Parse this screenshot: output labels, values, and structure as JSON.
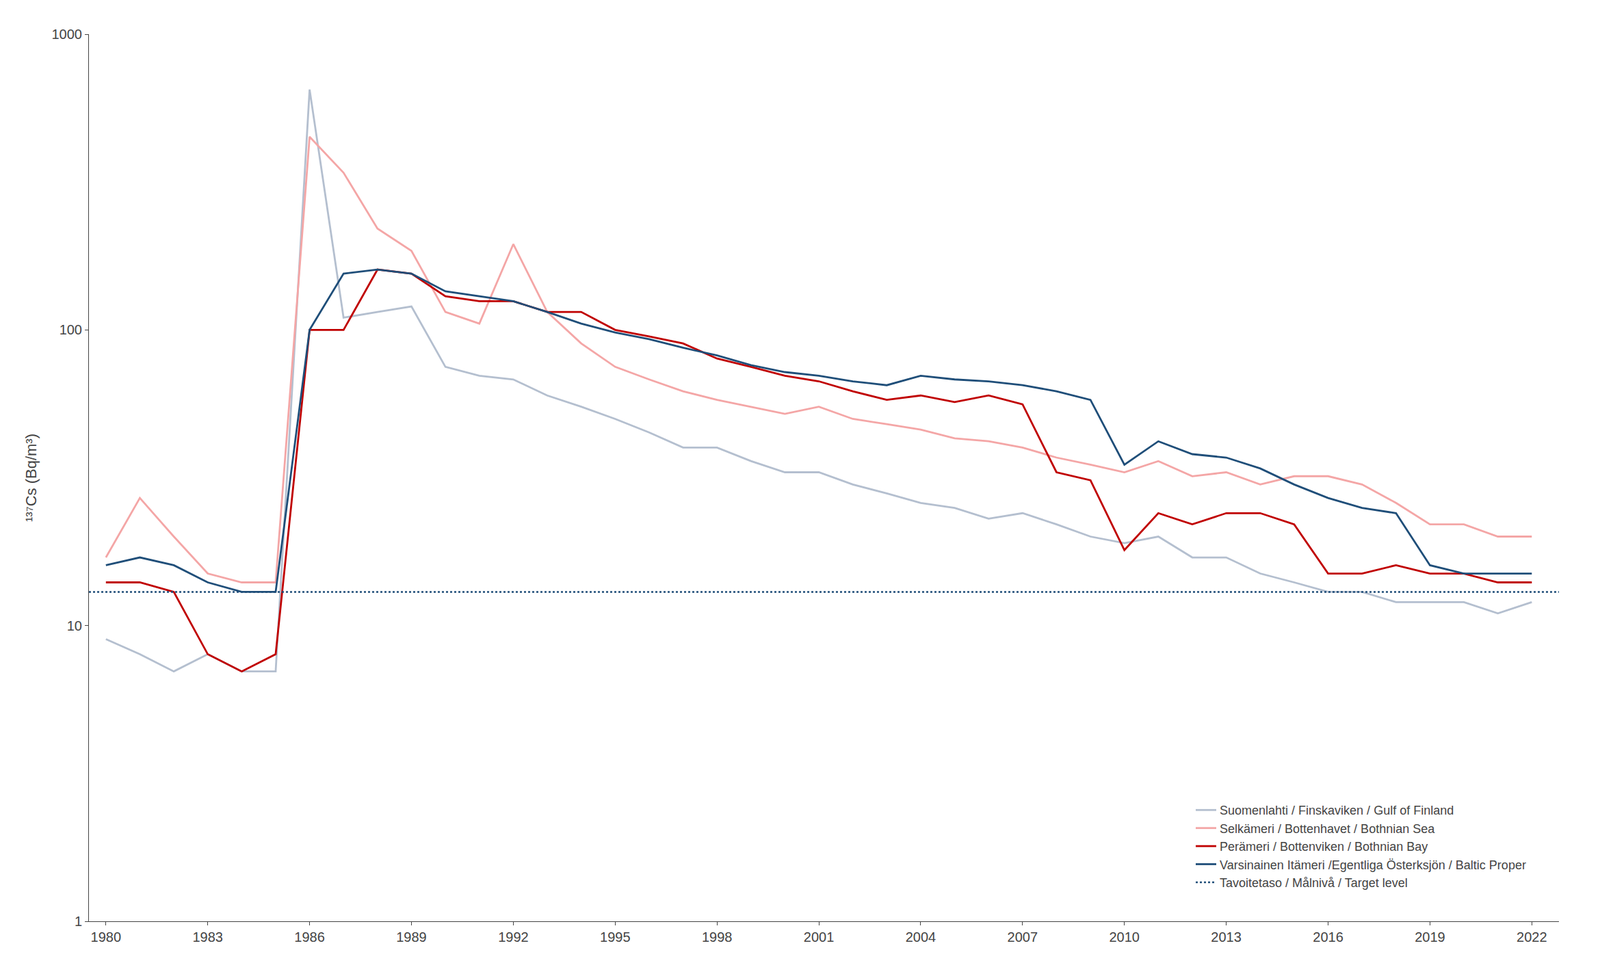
{
  "chart_data": {
    "type": "line",
    "x": [
      1980,
      1981,
      1982,
      1983,
      1984,
      1985,
      1986,
      1987,
      1988,
      1989,
      1990,
      1991,
      1992,
      1993,
      1994,
      1995,
      1996,
      1997,
      1998,
      1999,
      2000,
      2001,
      2002,
      2003,
      2004,
      2005,
      2006,
      2007,
      2008,
      2009,
      2010,
      2011,
      2012,
      2013,
      2014,
      2015,
      2016,
      2017,
      2018,
      2019,
      2020,
      2021,
      2022
    ],
    "series": [
      {
        "name": "Suomenlahti / Finskaviken / Gulf of Finland",
        "color": "#b4bfcf",
        "line_style": "solid",
        "values": [
          9,
          8,
          7,
          8,
          7,
          7,
          650,
          110,
          115,
          120,
          75,
          70,
          68,
          60,
          55,
          50,
          45,
          40,
          40,
          36,
          33,
          33,
          30,
          28,
          26,
          25,
          23,
          24,
          22,
          20,
          19,
          20,
          17,
          17,
          15,
          14,
          13,
          13,
          12,
          12,
          12,
          11,
          12
        ]
      },
      {
        "name": "Selkämeri / Bottenhavet / Bothnian Sea",
        "color": "#f4a6a6",
        "line_style": "solid",
        "values": [
          17,
          27,
          20,
          15,
          14,
          14,
          450,
          340,
          220,
          185,
          115,
          105,
          195,
          115,
          90,
          75,
          68,
          62,
          58,
          55,
          52,
          55,
          50,
          48,
          46,
          43,
          42,
          40,
          37,
          35,
          33,
          36,
          32,
          33,
          30,
          32,
          32,
          30,
          26,
          22,
          22,
          20,
          20
        ]
      },
      {
        "name": "Perämeri / Bottenviken / Bothnian Bay",
        "color": "#c00000",
        "line_style": "solid",
        "values": [
          14,
          14,
          13,
          8,
          7,
          8,
          100,
          100,
          160,
          155,
          130,
          125,
          125,
          115,
          115,
          100,
          95,
          90,
          80,
          75,
          70,
          67,
          62,
          58,
          60,
          57,
          60,
          56,
          33,
          31,
          18,
          24,
          22,
          24,
          24,
          22,
          15,
          15,
          16,
          15,
          15,
          14,
          14
        ]
      },
      {
        "name": "Varsinainen Itämeri /Egentliga Österksjön / Baltic Proper",
        "color": "#1f4e79",
        "line_style": "solid",
        "values": [
          16,
          17,
          16,
          14,
          13,
          13,
          100,
          155,
          160,
          155,
          135,
          130,
          125,
          115,
          105,
          98,
          93,
          87,
          82,
          76,
          72,
          70,
          67,
          65,
          70,
          68,
          67,
          65,
          62,
          58,
          35,
          42,
          38,
          37,
          34,
          30,
          27,
          25,
          24,
          16,
          15,
          15,
          15
        ]
      },
      {
        "name": "Tavoitetaso / Målnivå / Target level",
        "type": "hline",
        "color": "#1f4e79",
        "line_style": "dotted",
        "value": 13
      }
    ],
    "ylabel": "¹³⁷Cs (Bq/m³)",
    "xlim": [
      1979.5,
      2022.8
    ],
    "xticks": [
      1980,
      1983,
      1986,
      1989,
      1992,
      1995,
      1998,
      2001,
      2004,
      2007,
      2010,
      2013,
      2016,
      2019,
      2022
    ],
    "ylim": [
      1,
      1000
    ],
    "yticks": [
      1,
      10,
      100,
      1000
    ],
    "log": "y",
    "grid": false,
    "legend": "lower right"
  }
}
